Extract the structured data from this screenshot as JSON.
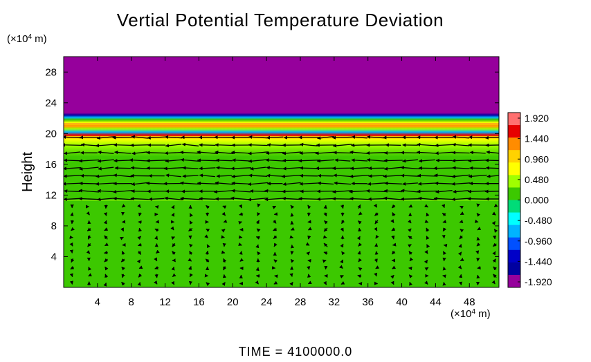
{
  "chart_data": {
    "type": "heatmap",
    "title": "Vertial Potential Temperature Deviation",
    "ylabel": "Height",
    "y_unit": [
      "(×10",
      "4",
      " m)"
    ],
    "x_unit": [
      "(×10",
      "4",
      " m)"
    ],
    "xlim": [
      0,
      51.5
    ],
    "ylim": [
      0,
      30
    ],
    "x_ticks": [
      "4",
      "8",
      "12",
      "16",
      "20",
      "24",
      "28",
      "32",
      "36",
      "40",
      "44",
      "48"
    ],
    "x_tick_values": [
      4,
      8,
      12,
      16,
      20,
      24,
      28,
      32,
      36,
      40,
      44,
      48
    ],
    "y_ticks": [
      "4",
      "8",
      "12",
      "16",
      "20",
      "24",
      "28"
    ],
    "y_tick_values": [
      4,
      8,
      12,
      16,
      20,
      24,
      28
    ],
    "colorbar": {
      "range": [
        -1.92,
        1.92
      ],
      "ticks": [
        "1.920",
        "1.440",
        "0.960",
        "0.480",
        "0.000",
        "-0.480",
        "-0.960",
        "-1.440",
        "-1.920"
      ],
      "tick_values": [
        1.92,
        1.44,
        0.96,
        0.48,
        0.0,
        -0.48,
        -0.96,
        -1.44,
        -1.92
      ],
      "colors": [
        "#ff7070",
        "#e60000",
        "#ff8c00",
        "#ffd200",
        "#ffff00",
        "#a0ff00",
        "#3cc800",
        "#00dc78",
        "#00ffff",
        "#00b4ff",
        "#0050ff",
        "#0000c8",
        "#0000a0",
        "#96009c"
      ]
    },
    "field_profile": [
      {
        "height": 0,
        "value": 0.1
      },
      {
        "height": 11.0,
        "value": 0.1
      },
      {
        "height": 11.3,
        "value": 0.2
      },
      {
        "height": 11.6,
        "value": 0.1
      },
      {
        "height": 17.0,
        "value": 0.2
      },
      {
        "height": 18.5,
        "value": 0.4
      },
      {
        "height": 19.3,
        "value": 0.8
      },
      {
        "height": 19.8,
        "value": 1.5
      },
      {
        "height": 20.2,
        "value": -0.6
      },
      {
        "height": 20.6,
        "value": 0.5
      },
      {
        "height": 21.0,
        "value": 1.1
      },
      {
        "height": 21.4,
        "value": 0.7
      },
      {
        "height": 21.8,
        "value": 0.2
      },
      {
        "height": 22.1,
        "value": -0.6
      },
      {
        "height": 22.4,
        "value": -1.5
      },
      {
        "height": 22.7,
        "value": -1.95
      },
      {
        "height": 30,
        "value": -1.95
      }
    ],
    "wind_vectors": {
      "x_spacing": 2.0,
      "y_spacing": 1.0,
      "y_range": [
        0.5,
        20.0
      ],
      "jet_band": [
        11.5,
        19.5
      ],
      "jet_u": -1.0
    }
  },
  "footer": {
    "time_text": "TIME  =  4100000.0"
  }
}
